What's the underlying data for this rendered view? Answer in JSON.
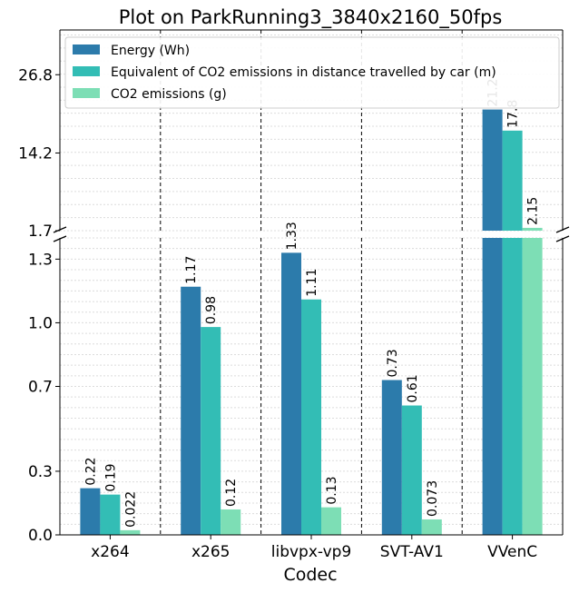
{
  "chart_data": {
    "type": "bar",
    "title": "Plot on ParkRunning3_3840x2160_50fps",
    "xlabel": "Codec",
    "ylabel": "",
    "categories": [
      "x264",
      "x265",
      "libvpx-vp9",
      "SVT-AV1",
      "VVenC"
    ],
    "series": [
      {
        "name": "Energy (Wh)",
        "color": "#2c7bab",
        "values": [
          0.22,
          1.17,
          1.33,
          0.73,
          21.2
        ]
      },
      {
        "name": "Equivalent of CO2 emissions in distance travelled by car (m)",
        "color": "#33bdb5",
        "values": [
          0.19,
          0.98,
          1.11,
          0.61,
          17.8
        ]
      },
      {
        "name": "CO2 emissions (g)",
        "color": "#7ddeb5",
        "values": [
          0.022,
          0.12,
          0.13,
          0.073,
          2.15
        ]
      }
    ],
    "bar_labels": [
      [
        "0.22",
        "1.17",
        "1.33",
        "0.73",
        "21.2"
      ],
      [
        "0.19",
        "0.98",
        "1.11",
        "0.61",
        "17.8"
      ],
      [
        "0.022",
        "0.12",
        "0.13",
        "0.073",
        "2.15"
      ]
    ],
    "broken_axis": true,
    "upper_ylim": [
      1.7,
      34
    ],
    "lower_ylim": [
      0,
      1.4
    ],
    "upper_yticks": [
      "1.7",
      "14.2",
      "26.8"
    ],
    "lower_yticks": [
      "0.0",
      "0.3",
      "0.7",
      "1.0",
      "1.3"
    ],
    "upper_ytick_values": [
      1.7,
      14.2,
      26.8
    ],
    "lower_ytick_values": [
      0.0,
      0.3,
      0.7,
      1.0,
      1.3
    ],
    "grid": true,
    "legend_position": "top"
  }
}
